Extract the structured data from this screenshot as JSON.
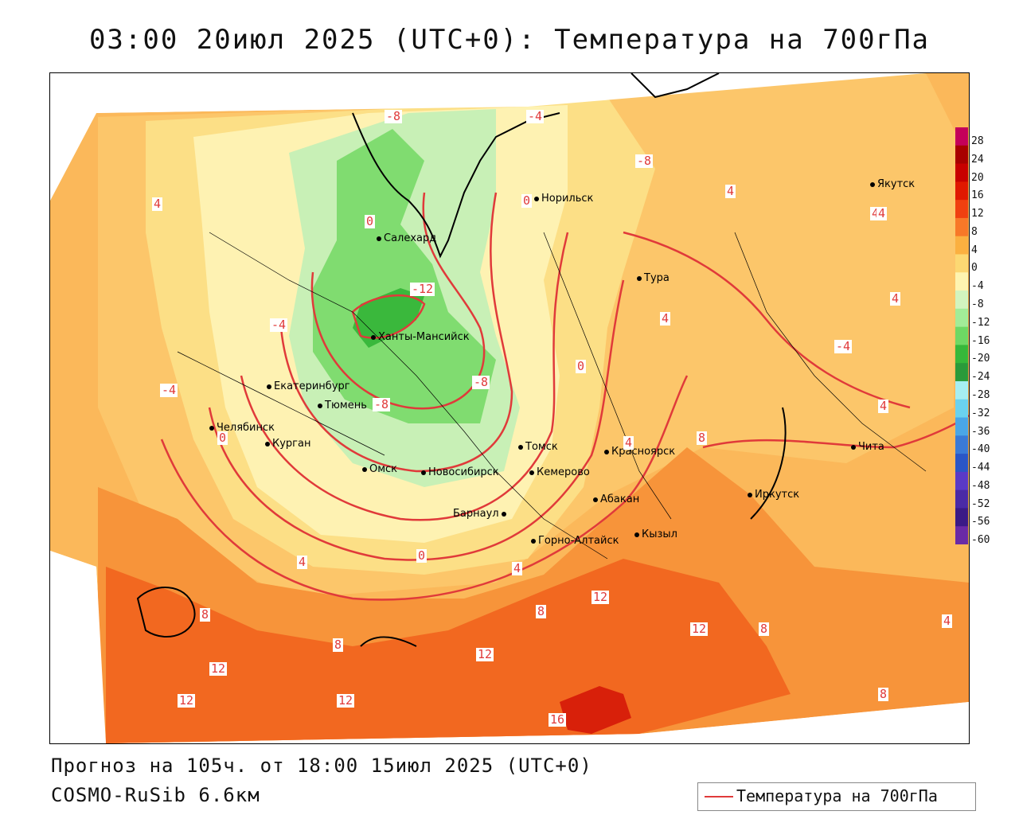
{
  "title": "03:00 20июл 2025 (UTC+0): Температура на 700гПа",
  "footer": {
    "forecast": "Прогноз на 105ч. от 18:00 15июл 2025 (UTC+0)",
    "model": "COSMO-RuSib 6.6км"
  },
  "legend": {
    "label": "Температура на 700гПа",
    "line_color": "#e03a3a"
  },
  "colorbar": {
    "ticks": [
      "28",
      "24",
      "20",
      "16",
      "12",
      "8",
      "4",
      "0",
      "-4",
      "-8",
      "-12",
      "-16",
      "-20",
      "-24",
      "-28",
      "-32",
      "-36",
      "-40",
      "-44",
      "-48",
      "-52",
      "-56",
      "-60"
    ],
    "colors": [
      "#c4005a",
      "#a80000",
      "#c80000",
      "#e01800",
      "#f04010",
      "#f87828",
      "#fbb040",
      "#fcd873",
      "#fef4b0",
      "#d2f4bf",
      "#a2ec98",
      "#6ed864",
      "#36b83a",
      "#2a9a3a",
      "#a6eef2",
      "#6ad2ee",
      "#4aa6e6",
      "#3a7ad6",
      "#2a56c6",
      "#5a3ac6",
      "#4a2aa6",
      "#3a1a86",
      "#6a2aa6"
    ]
  },
  "cities": [
    {
      "name": "Якутск"
    },
    {
      "name": "Норильск"
    },
    {
      "name": "Салехард"
    },
    {
      "name": "Тура"
    },
    {
      "name": "Ханты-Мансийск"
    },
    {
      "name": "Екатеринбург"
    },
    {
      "name": "Тюмень"
    },
    {
      "name": "Челябинск"
    },
    {
      "name": "Курган"
    },
    {
      "name": "Омск"
    },
    {
      "name": "Новосибирск"
    },
    {
      "name": "Томск"
    },
    {
      "name": "Кемерово"
    },
    {
      "name": "Красноярск"
    },
    {
      "name": "Абакан"
    },
    {
      "name": "Барнаул"
    },
    {
      "name": "Горно-Алтайск"
    },
    {
      "name": "Кызыл"
    },
    {
      "name": "Иркутск"
    },
    {
      "name": "Чита"
    }
  ],
  "contour_labels": [
    "-8",
    "-4",
    "0",
    "4",
    "-8",
    "0",
    "-12",
    "-4",
    "-4",
    "-8",
    "0",
    "4",
    "4",
    "-4",
    "4",
    "4",
    "-8",
    "0",
    "4",
    "8",
    "0",
    "4",
    "8",
    "8",
    "12",
    "12",
    "12",
    "12",
    "12",
    "16",
    "12",
    "8",
    "8",
    "4",
    "4",
    "4",
    "8",
    "4"
  ]
}
